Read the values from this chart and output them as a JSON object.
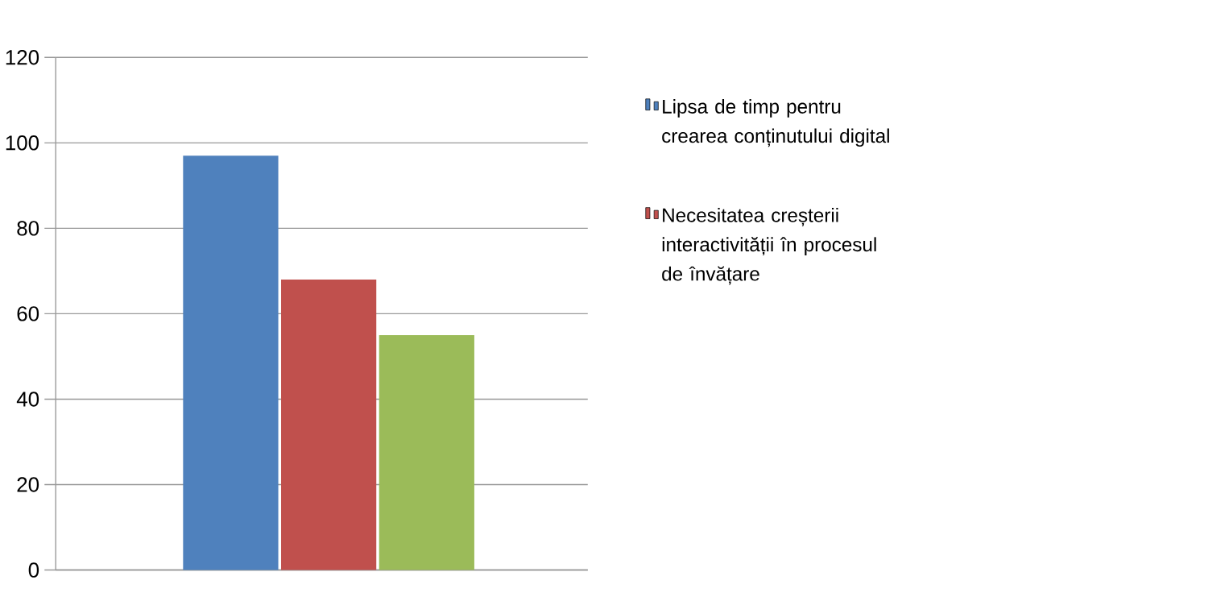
{
  "chart_data": {
    "type": "bar",
    "categories": [
      null
    ],
    "series": [
      {
        "name": "Lipsa de timp pentru crearea conținutului digital",
        "color": "#4f81bd",
        "values": [
          97
        ]
      },
      {
        "name": "Necesitatea creșterii interactivității în procesul de învățare",
        "color": "#c0504d",
        "values": [
          68
        ]
      },
      {
        "color": "#9bbb59",
        "values": [
          55
        ]
      }
    ],
    "ylim": [
      0,
      120
    ],
    "yticks": [
      0,
      20,
      40,
      60,
      80,
      100,
      120
    ],
    "grid": "y",
    "legend": "right"
  }
}
